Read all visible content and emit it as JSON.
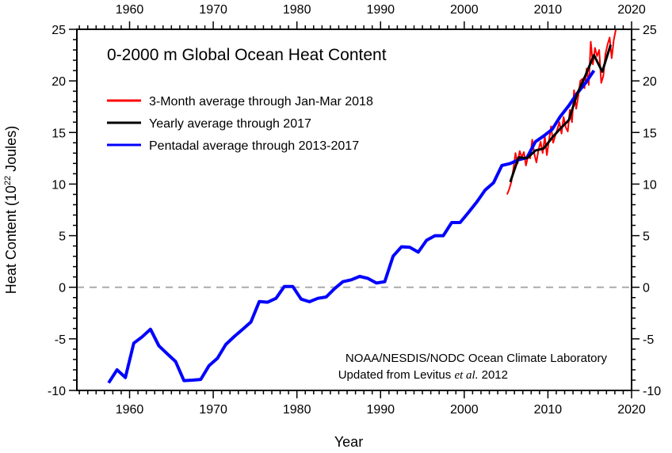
{
  "chart_data": {
    "type": "line",
    "title": "0-2000 m Global Ocean Heat Content",
    "xlabel": "Year",
    "ylabel": "Heat Content (10",
    "ylabel_sup": "22",
    "ylabel_end": " Joules)",
    "xlim": [
      1953.7,
      2020
    ],
    "ylim": [
      -10,
      25
    ],
    "xticks": [
      1960,
      1970,
      1980,
      1990,
      2000,
      2010,
      2020
    ],
    "yticks": [
      -10,
      -5,
      0,
      5,
      10,
      15,
      20,
      25
    ],
    "xtick_labels": [
      "1960",
      "1970",
      "1980",
      "1990",
      "2000",
      "2010",
      "2020"
    ],
    "ytick_labels": [
      "-10",
      "-5",
      "0",
      "5",
      "10",
      "15",
      "20",
      "25"
    ],
    "reference_line": {
      "y": 0,
      "style": "dashed",
      "color": "#aaaaaa"
    },
    "legend_position": "top-left",
    "series": [
      {
        "name": "3-Month average through Jan-Mar 2018",
        "color": "#ff0000",
        "x_start": 2005.125,
        "x_step": 0.25,
        "values": [
          9.0,
          9.5,
          10.2,
          11.5,
          13.0,
          12.0,
          13.2,
          12.6,
          13.1,
          11.8,
          12.7,
          12.5,
          14.3,
          12.9,
          12.1,
          13.3,
          14.1,
          13.0,
          14.6,
          12.8,
          14.2,
          15.6,
          14.0,
          14.7,
          15.3,
          16.0,
          14.9,
          16.5,
          15.5,
          15.1,
          17.2,
          16.0,
          19.1,
          17.3,
          18.5,
          20.0,
          20.2,
          19.3,
          21.2,
          19.6,
          23.8,
          21.6,
          23.2,
          22.4,
          23.0,
          19.8,
          20.5,
          22.6,
          23.5,
          24.2,
          22.2,
          24.0,
          25.0
        ]
      },
      {
        "name": "Yearly average through 2017",
        "color": "#000000",
        "x_start": 2005.5,
        "x_step": 1,
        "values": [
          10.2,
          12.6,
          12.5,
          13.25,
          13.45,
          14.5,
          15.4,
          16.2,
          18.75,
          20.55,
          22.5,
          20.9,
          23.5
        ]
      },
      {
        "name": "Pentadal average through 2013-2017",
        "color": "#0000ff",
        "x_start": 1957.5,
        "x_step": 1,
        "values": [
          -9.26,
          -8.0,
          -8.75,
          -5.42,
          -4.8,
          -4.07,
          -5.68,
          -6.45,
          -7.2,
          -9.05,
          -9.0,
          -8.93,
          -7.6,
          -6.88,
          -5.55,
          -4.78,
          -4.09,
          -3.37,
          -1.38,
          -1.45,
          -1.07,
          0.08,
          0.08,
          -1.15,
          -1.4,
          -1.07,
          -0.94,
          -0.13,
          0.54,
          0.72,
          1.05,
          0.85,
          0.41,
          0.54,
          3.02,
          3.92,
          3.87,
          3.4,
          4.55,
          5.0,
          5.0,
          6.27,
          6.27,
          7.24,
          8.27,
          9.42,
          10.13,
          11.8,
          12.0,
          12.36,
          12.56,
          14.1,
          14.66,
          15.3,
          16.58,
          17.6,
          18.8,
          19.8,
          21.0
        ]
      }
    ],
    "annotation": {
      "line1": "NOAA/NESDIS/NODC Ocean Climate Laboratory",
      "line2_pre": "Updated from Levitus ",
      "line2_italic": "et al.",
      "line2_post": " 2012"
    }
  }
}
